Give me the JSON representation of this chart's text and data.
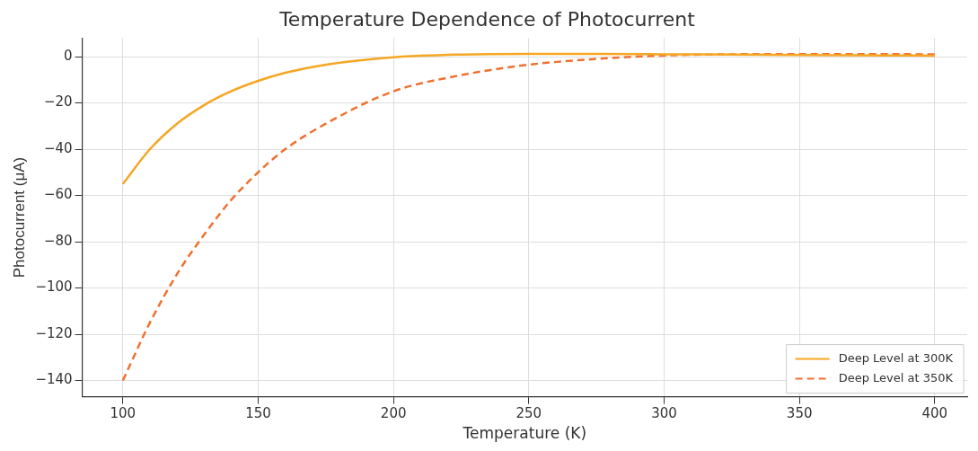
{
  "chart_data": {
    "type": "line",
    "title": "Temperature Dependence of Photocurrent",
    "xlabel": "Temperature (K)",
    "ylabel": "Photocurrent (μA)",
    "x": [
      100,
      110,
      120,
      130,
      140,
      150,
      160,
      175,
      200,
      225,
      250,
      275,
      300,
      325,
      350,
      400
    ],
    "series": [
      {
        "name": "Deep Level at 300K",
        "color": "#f5a623",
        "line_style": "solid",
        "values": [
          -55,
          -40,
          -29,
          -21,
          -15,
          -10.5,
          -7,
          -3.5,
          -0.3,
          0.9,
          1.2,
          1.2,
          1,
          0.9,
          0.7,
          0.4
        ]
      },
      {
        "name": "Deep Level at 350K",
        "color": "#f07030",
        "line_style": "dashed",
        "values": [
          -140,
          -115,
          -94,
          -77,
          -62,
          -50,
          -40,
          -29,
          -15,
          -8,
          -3.5,
          -1,
          0.5,
          1,
          1.1,
          1
        ]
      }
    ],
    "xlim": [
      85,
      412
    ],
    "ylim": [
      -147,
      8
    ],
    "xticks": [
      100,
      150,
      200,
      250,
      300,
      350,
      400
    ],
    "yticks": [
      -140,
      -120,
      -100,
      -80,
      -60,
      -40,
      -20,
      0
    ],
    "grid": true,
    "legend": "bottom right",
    "marker": "none"
  }
}
